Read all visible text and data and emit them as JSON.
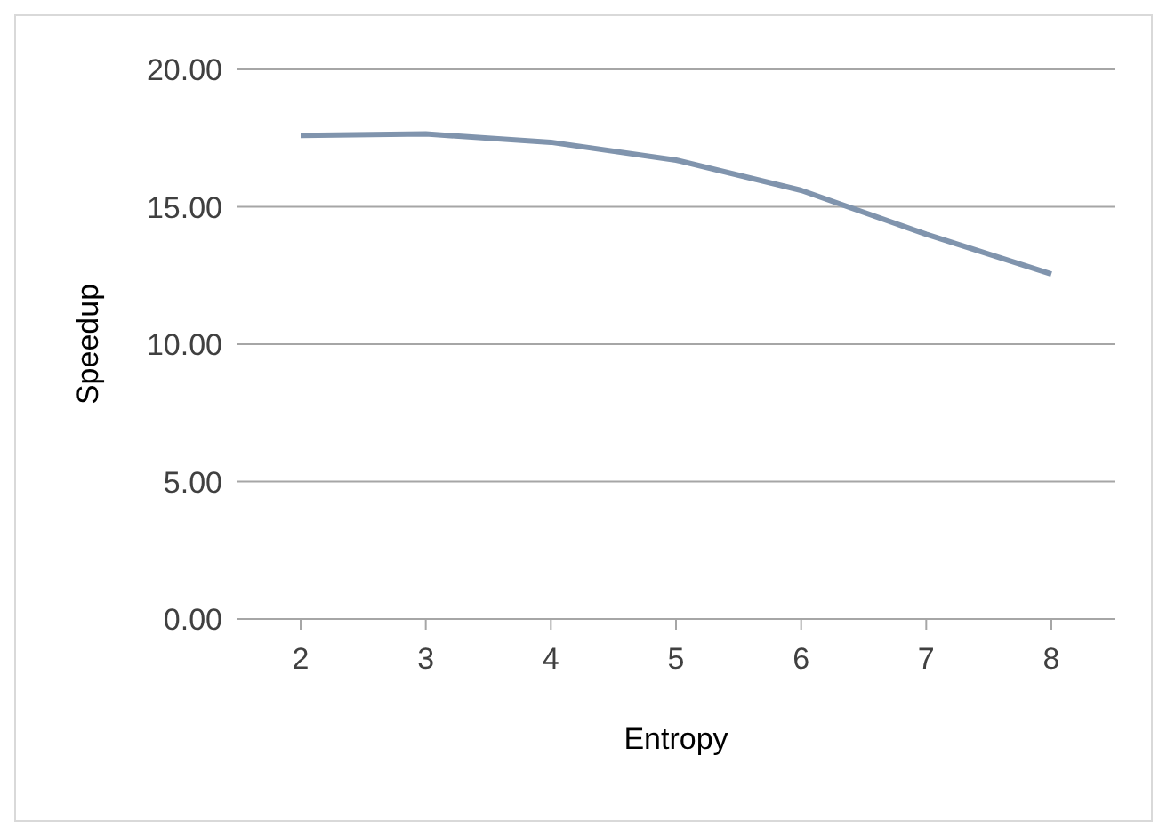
{
  "chart_data": {
    "type": "line",
    "xlabel": "Entropy",
    "ylabel": "Speedup",
    "categories": [
      "2",
      "3",
      "4",
      "5",
      "6",
      "7",
      "8"
    ],
    "series": [
      {
        "color": "#8094ad",
        "values": [
          17.6,
          17.65,
          17.35,
          16.7,
          15.6,
          14.0,
          12.55
        ]
      }
    ],
    "ylim": [
      0,
      20
    ],
    "yticks": [
      {
        "value": 0,
        "label": "0.00"
      },
      {
        "value": 5,
        "label": "5.00"
      },
      {
        "value": 10,
        "label": "10.00"
      },
      {
        "value": 15,
        "label": "15.00"
      },
      {
        "value": 20,
        "label": "20.00"
      }
    ],
    "grid": "y",
    "legend": false,
    "marker": "none",
    "line_style": "solid"
  }
}
